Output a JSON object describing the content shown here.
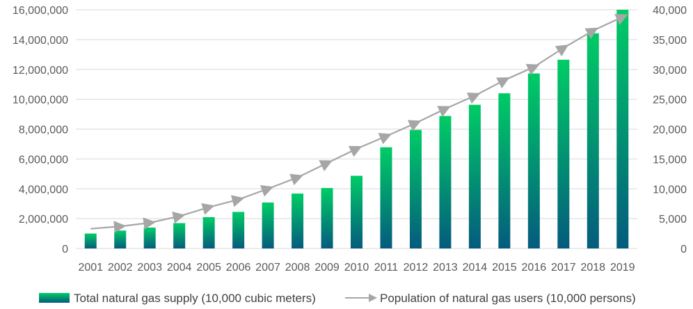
{
  "chart_data": {
    "type": "bar+line",
    "title": "",
    "categories": [
      "2001",
      "2002",
      "2003",
      "2004",
      "2005",
      "2006",
      "2007",
      "2008",
      "2009",
      "2010",
      "2011",
      "2012",
      "2013",
      "2014",
      "2015",
      "2016",
      "2017",
      "2018",
      "2019"
    ],
    "series": [
      {
        "name": "Total natural gas supply (10,000 cubic meters)",
        "type": "bar",
        "axis": "left",
        "values": [
          1000000,
          1200000,
          1400000,
          1700000,
          2100000,
          2450000,
          3080000,
          3680000,
          4050000,
          4870000,
          6780000,
          7950000,
          8880000,
          9630000,
          10400000,
          11730000,
          12650000,
          14420000,
          16000000
        ]
      },
      {
        "name": "Population of natural gas users (10,000 persons)",
        "type": "line",
        "axis": "right",
        "values": [
          3300,
          3700,
          4300,
          5400,
          6900,
          8200,
          10000,
          11900,
          14300,
          16700,
          18800,
          21000,
          23400,
          25600,
          28200,
          30400,
          33600,
          36500,
          38800
        ]
      }
    ],
    "y_left": {
      "min": 0,
      "max": 16000000,
      "ticks": [
        0,
        2000000,
        4000000,
        6000000,
        8000000,
        10000000,
        12000000,
        14000000,
        16000000
      ],
      "tick_labels": [
        "0",
        "2,000,000",
        "4,000,000",
        "6,000,000",
        "8,000,000",
        "10,000,000",
        "12,000,000",
        "14,000,000",
        "16,000,000"
      ]
    },
    "y_right": {
      "min": 0,
      "max": 40000,
      "ticks": [
        0,
        5000,
        10000,
        15000,
        20000,
        25000,
        30000,
        35000,
        40000
      ],
      "tick_labels": [
        "0",
        "5,000",
        "10,000",
        "15,000",
        "20,000",
        "25,000",
        "30,000",
        "35,000",
        "40,000"
      ]
    },
    "grid": true,
    "legend": {
      "position": "bottom",
      "bar_label": "Total natural gas supply (10,000 cubic meters)",
      "line_label": "Population of natural gas users (10,000 persons)"
    }
  },
  "colors": {
    "bar_top": "#00cc66",
    "bar_bottom": "#045b7d",
    "line": "#a6a6a6",
    "grid": "#d9d9d9",
    "axis_text": "#595959"
  }
}
